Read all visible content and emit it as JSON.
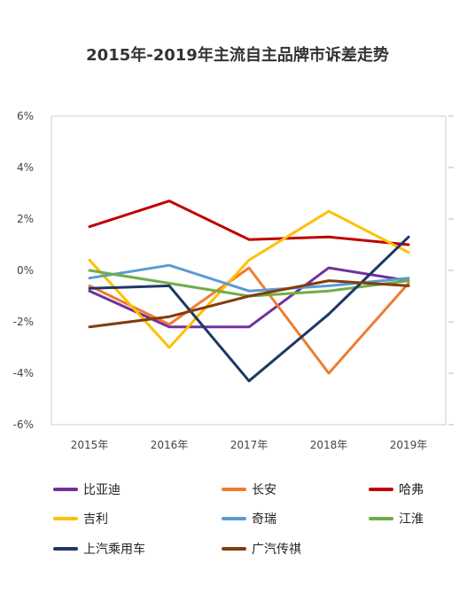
{
  "chart_data": {
    "type": "line",
    "title": "2015年-2019年主流自主品牌市诉差走势",
    "categories": [
      "2015年",
      "2016年",
      "2017年",
      "2018年",
      "2019年"
    ],
    "y_tick_labels": [
      "6%",
      "4%",
      "2%",
      "0%",
      "-2%",
      "-4%",
      "-6%"
    ],
    "ylim": [
      -6,
      6
    ],
    "grid": false,
    "legend_position": "bottom",
    "series": [
      {
        "name": "比亚迪",
        "color": "#7030a0",
        "values": [
          -0.8,
          -2.2,
          -2.2,
          0.1,
          -0.4
        ]
      },
      {
        "name": "长安",
        "color": "#ed7d31",
        "values": [
          -0.6,
          -2.1,
          0.1,
          -4.0,
          -0.5
        ]
      },
      {
        "name": "哈弗",
        "color": "#c00000",
        "values": [
          1.7,
          2.7,
          1.2,
          1.3,
          1.0
        ]
      },
      {
        "name": "吉利",
        "color": "#ffc000",
        "values": [
          0.4,
          -3.0,
          0.4,
          2.3,
          0.7
        ]
      },
      {
        "name": "奇瑞",
        "color": "#5b9bd5",
        "values": [
          -0.3,
          0.2,
          -0.8,
          -0.6,
          -0.3
        ]
      },
      {
        "name": "江淮",
        "color": "#70ad47",
        "values": [
          0.0,
          -0.5,
          -1.0,
          -0.8,
          -0.4
        ]
      },
      {
        "name": "上汽乘用车",
        "color": "#1f3864",
        "values": [
          -0.7,
          -0.6,
          -4.3,
          -1.7,
          1.3
        ]
      },
      {
        "name": "广汽传祺",
        "color": "#843c0c",
        "values": [
          -2.2,
          -1.8,
          -1.0,
          -0.4,
          -0.6
        ]
      }
    ]
  }
}
